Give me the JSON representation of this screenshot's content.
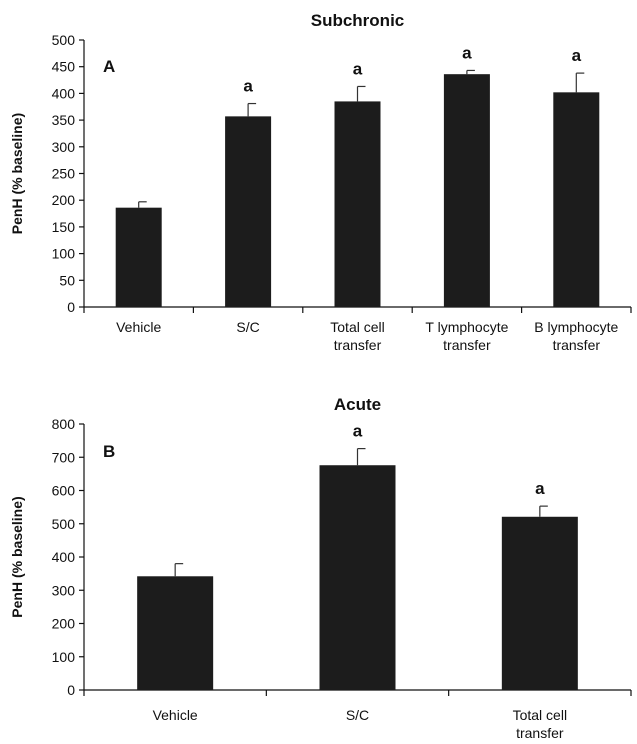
{
  "chart_data": [
    {
      "type": "bar",
      "title": "Subchronic",
      "panel_label": "A",
      "ylabel": "PenH (% baseline)",
      "xlabel": "",
      "ylim": [
        0,
        500
      ],
      "ytick_step": 50,
      "yticks": [
        "0",
        "50",
        "100",
        "150",
        "200",
        "250",
        "300",
        "350",
        "400",
        "450",
        "500"
      ],
      "categories": [
        "Vehicle",
        "S/C",
        "Total cell transfer",
        "T lymphocyte transfer",
        "B lymphocyte transfer"
      ],
      "category_lines": [
        [
          "Vehicle"
        ],
        [
          "S/C"
        ],
        [
          "Total cell",
          "transfer"
        ],
        [
          "T lymphocyte",
          "transfer"
        ],
        [
          "B lymphocyte",
          "transfer"
        ]
      ],
      "values": [
        186,
        357,
        385,
        436,
        402
      ],
      "errors": [
        11,
        24,
        28,
        7,
        36
      ],
      "annotations": [
        "",
        "a",
        "a",
        "a",
        "a"
      ],
      "grid": false,
      "bar_color": "#1c1c1c"
    },
    {
      "type": "bar",
      "title": "Acute",
      "panel_label": "B",
      "ylabel": "PenH (% baseline)",
      "xlabel": "",
      "ylim": [
        0,
        800
      ],
      "ytick_step": 100,
      "yticks": [
        "0",
        "100",
        "200",
        "300",
        "400",
        "500",
        "600",
        "700",
        "800"
      ],
      "categories": [
        "Vehicle",
        "S/C",
        "Total cell transfer"
      ],
      "category_lines": [
        [
          "Vehicle"
        ],
        [
          "S/C"
        ],
        [
          "Total cell",
          "transfer"
        ]
      ],
      "values": [
        342,
        676,
        521
      ],
      "errors": [
        38,
        50,
        32
      ],
      "annotations": [
        "",
        "a",
        "a"
      ],
      "grid": false,
      "bar_color": "#1c1c1c"
    }
  ]
}
